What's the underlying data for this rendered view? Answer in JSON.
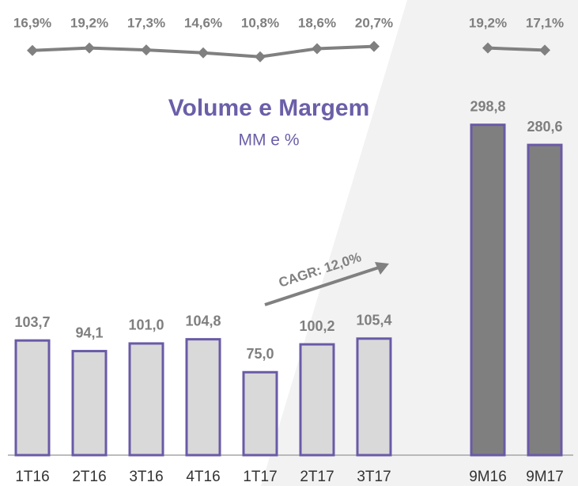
{
  "chart_data": {
    "type": "bar",
    "title": "Volume e Margem",
    "subtitle": "MM e %",
    "annotation": "CAGR: 12,0%",
    "categories": [
      "1T16",
      "2T16",
      "3T16",
      "4T16",
      "1T17",
      "2T17",
      "3T17",
      null,
      "9M16",
      "9M17"
    ],
    "ylim": [
      0,
      300
    ],
    "y2lim": [
      0,
      25
    ],
    "series": [
      {
        "type": "bar",
        "edge_color": "#6a5aa7",
        "colors": [
          "#d9d9d9",
          "#d9d9d9",
          "#d9d9d9",
          "#d9d9d9",
          "#d9d9d9",
          "#d9d9d9",
          "#d9d9d9",
          null,
          "#7f7f7f",
          "#7f7f7f"
        ],
        "values": [
          103.7,
          94.1,
          101.0,
          104.8,
          75.0,
          100.2,
          105.4,
          null,
          298.8,
          280.6
        ],
        "value_labels": [
          "103,7",
          "94,1",
          "101,0",
          "104,8",
          "75,0",
          "100,2",
          "105,4",
          null,
          "298,8",
          "280,6"
        ]
      },
      {
        "type": "line",
        "axis": "y2",
        "color": "#808080",
        "values": [
          16.9,
          19.2,
          17.3,
          14.6,
          10.8,
          18.6,
          20.7,
          null,
          19.2,
          17.1
        ],
        "value_labels": [
          "16,9%",
          "19,2%",
          "17,3%",
          "14,6%",
          "10,8%",
          "18,6%",
          "20,7%",
          null,
          "19,2%",
          "17,1%"
        ]
      }
    ]
  }
}
